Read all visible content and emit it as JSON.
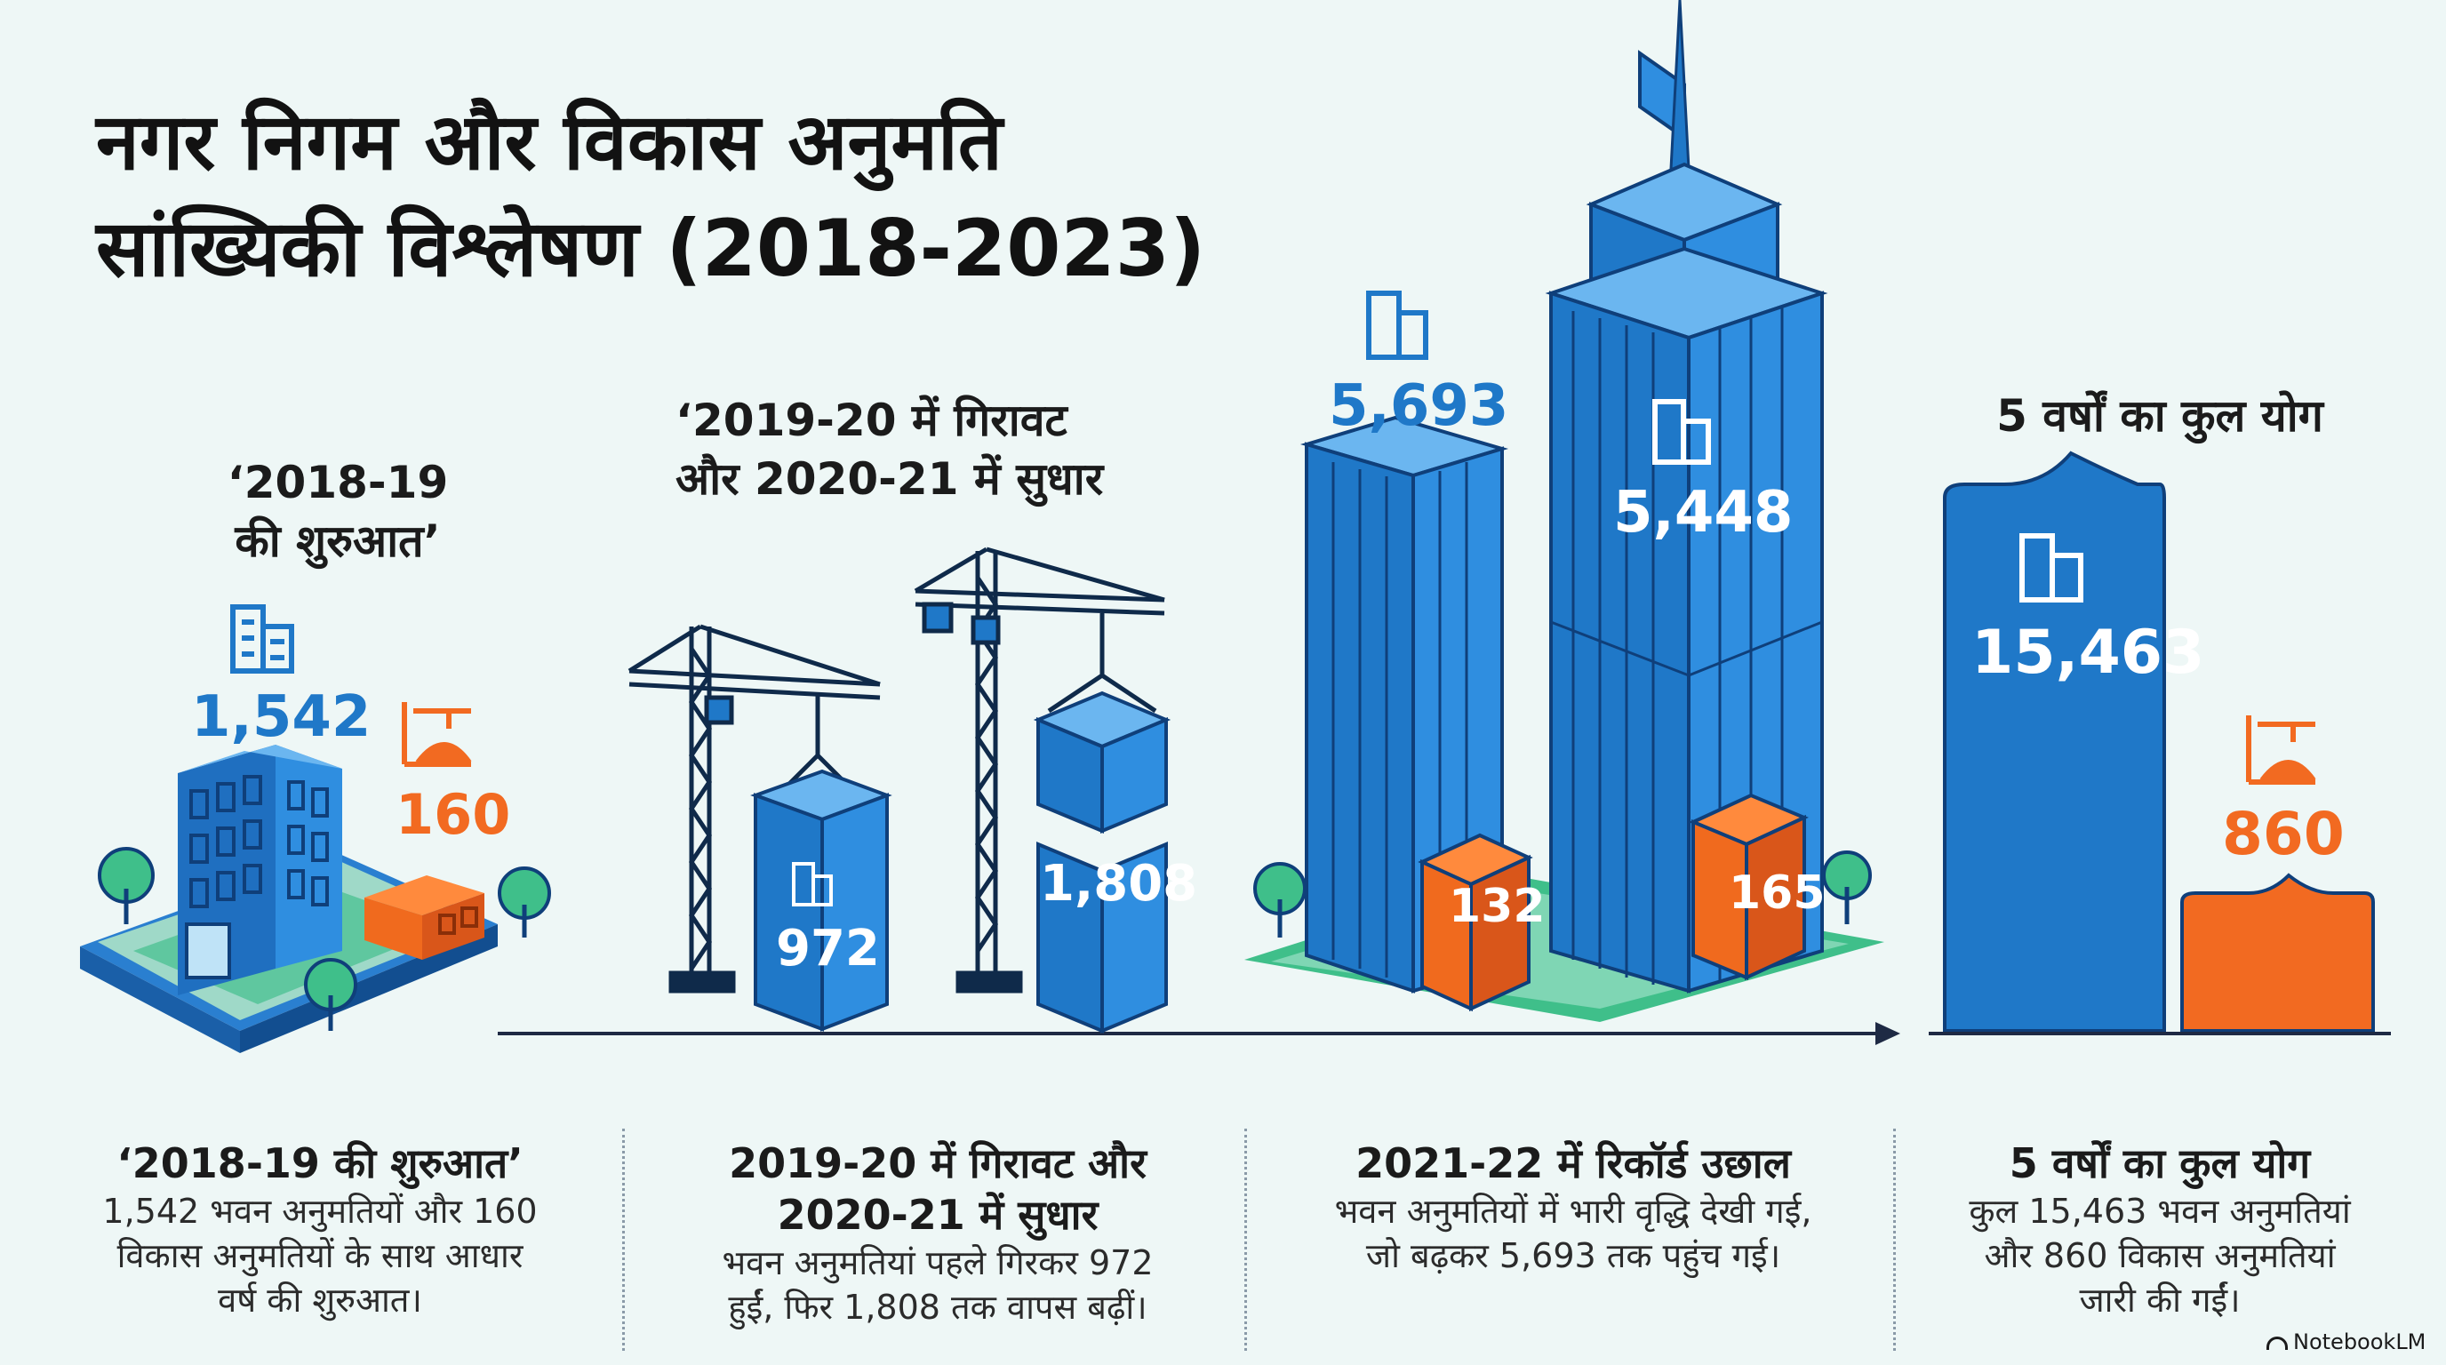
{
  "title": {
    "line1": "नगर निगम और विकास अनुमति",
    "line2": "सांख्यिकी विश्लेषण (2018-2023)"
  },
  "callouts": {
    "start": {
      "line1": "‘2018-19",
      "line2": "की शुरुआत’"
    },
    "dip": {
      "line1": "‘2019-20 में गिरावट",
      "line2": "और 2020-21 में सुधार"
    },
    "total": "5 वर्षों का कुल योग"
  },
  "figures": {
    "building_2018": "1,542",
    "dev_2018": "160",
    "building_2019": "972",
    "building_2020": "1,808",
    "building_2021": "5,693",
    "building_2022": "5,448",
    "dev_2021": "132",
    "dev_2022": "165",
    "building_total": "15,463",
    "dev_total": "860"
  },
  "columns": [
    {
      "heading": "‘2018-19 की शुरुआत’",
      "body": [
        "1,542 भवन अनुमतियों और 160",
        "विकास अनुमतियों के साथ आधार",
        "वर्ष की शुरुआत।"
      ]
    },
    {
      "heading": "2019-20 में गिरावट और 2020-21 में सुधार",
      "heading_lines": [
        "2019-20 में गिरावट और",
        "2020-21 में सुधार"
      ],
      "body": [
        "भवन अनुमतियां पहले गिरकर 972",
        "हुईं, फिर 1,808 तक वापस बढ़ीं।"
      ]
    },
    {
      "heading": "2021-22 में रिकॉर्ड उछाल",
      "body": [
        "भवन अनुमतियों में भारी वृद्धि देखी गई,",
        "जो बढ़कर 5,693 तक पहुंच गई।"
      ]
    },
    {
      "heading": "5 वर्षों का कुल योग",
      "body": [
        "कुल 15,463 भवन अनुमतियां",
        "और 860 विकास अनुमतियां",
        "जारी की गईं।"
      ]
    }
  ],
  "branding": {
    "label": "NotebookLM"
  },
  "colors": {
    "blue": "#1f78c8",
    "orange": "#f26a21",
    "green": "#3fbf8a",
    "background": "#eef7f6"
  }
}
